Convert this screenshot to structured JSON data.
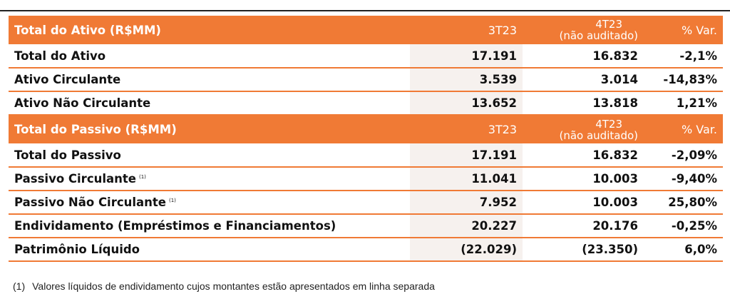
{
  "ativo": {
    "header": {
      "title": "Total do Ativo (R$MM)",
      "q3": "3T23",
      "q4_line1": "4T23",
      "q4_line2": "(não auditado)",
      "var": "% Var."
    },
    "rows": [
      {
        "label": "Total do Ativo",
        "q3": "17.191",
        "q4": "16.832",
        "var": "-2,1%"
      },
      {
        "label": "Ativo Circulante",
        "q3": "3.539",
        "q4": "3.014",
        "var": "-14,83%"
      },
      {
        "label": "Ativo Não Circulante",
        "q3": "13.652",
        "q4": "13.818",
        "var": "1,21%"
      }
    ]
  },
  "passivo": {
    "header": {
      "title": "Total do Passivo (R$MM)",
      "q3": "3T23",
      "q4_line1": "4T23",
      "q4_line2": "(não auditado)",
      "var": "% Var."
    },
    "rows": [
      {
        "label": "Total do Passivo",
        "q3": "17.191",
        "q4": "16.832",
        "var": "-2,09%"
      },
      {
        "label": "Passivo Circulante",
        "note": "(1)",
        "q3": "11.041",
        "q4": "10.003",
        "var": "-9,40%"
      },
      {
        "label": "Passivo Não Circulante",
        "note": "(1)",
        "q3": "7.952",
        "q4": "10.003",
        "var": "25,80%"
      },
      {
        "label": "Endividamento (Empréstimos e Financiamentos)",
        "q3": "20.227",
        "q4": "20.176",
        "var": "-0,25%"
      },
      {
        "label": "Patrimônio Líquido",
        "q3": "(22.029)",
        "q4": "(23.350)",
        "var": "6,0%"
      }
    ]
  },
  "footnote": {
    "index": "(1)",
    "text": "Valores líquidos de endividamento cujos montantes estão apresentados em linha separada"
  },
  "colors": {
    "accent": "#f07a35",
    "q3_shade": "#f6f1ee"
  }
}
